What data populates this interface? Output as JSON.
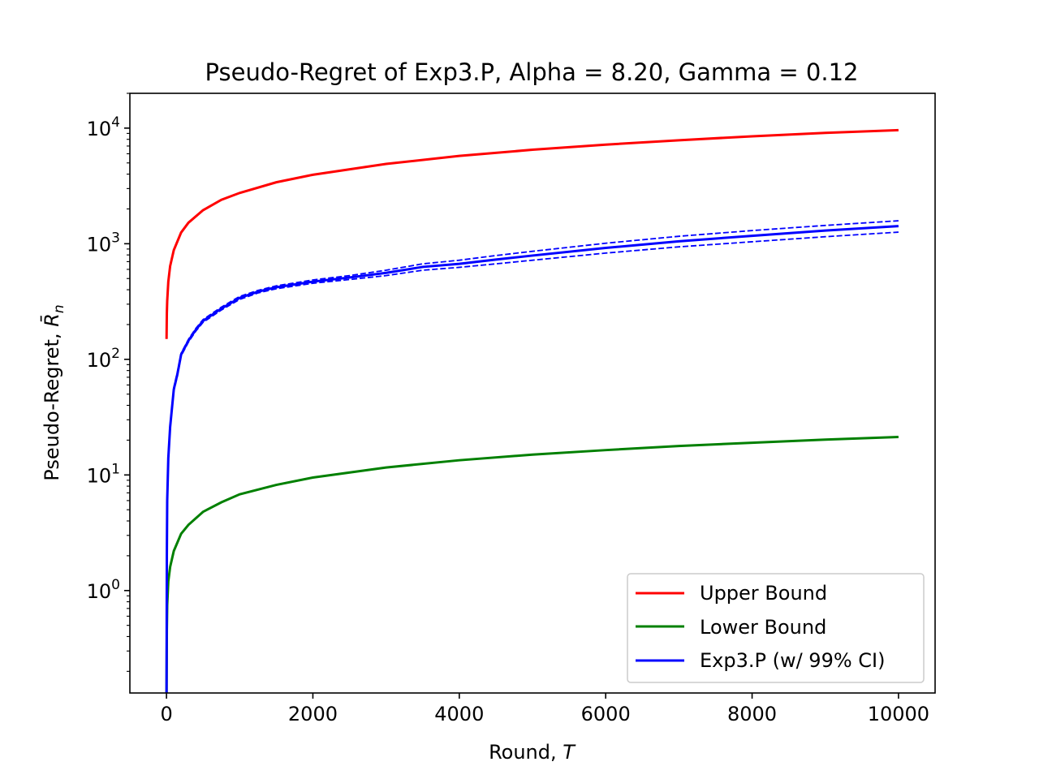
{
  "chart_data": {
    "type": "line",
    "title": "Pseudo-Regret of Exp3.P, Alpha = 8.20, Gamma = 0.12",
    "xlabel": "Round, T",
    "xlabel_parts": [
      "Round, ",
      "T"
    ],
    "ylabel": "Pseudo-Regret, R̄n",
    "ylabel_parts": [
      "Pseudo-Regret, ",
      "R̄",
      "n"
    ],
    "yscale": "log",
    "xlim": [
      -500,
      10500
    ],
    "ylim": [
      0.13,
      20000
    ],
    "xticks": [
      0,
      2000,
      4000,
      6000,
      8000,
      10000
    ],
    "xtick_labels": [
      "0",
      "2000",
      "4000",
      "6000",
      "8000",
      "10000"
    ],
    "yticks": [
      1,
      10,
      100,
      1000,
      10000
    ],
    "ytick_labels": [
      {
        "base": "10",
        "exp": "0"
      },
      {
        "base": "10",
        "exp": "1"
      },
      {
        "base": "10",
        "exp": "2"
      },
      {
        "base": "10",
        "exp": "3"
      },
      {
        "base": "10",
        "exp": "4"
      }
    ],
    "grid": false,
    "legend_position": "lower right",
    "series": [
      {
        "name": "Upper Bound",
        "color": "#ff0000",
        "style": "solid",
        "x": [
          1,
          5,
          10,
          25,
          50,
          100,
          200,
          300,
          500,
          750,
          1000,
          1500,
          2000,
          3000,
          4000,
          5000,
          6000,
          7000,
          8000,
          9000,
          10000
        ],
        "y": [
          150,
          250,
          320,
          470,
          640,
          880,
          1250,
          1520,
          1950,
          2400,
          2750,
          3400,
          3950,
          4900,
          5750,
          6500,
          7200,
          7850,
          8500,
          9100,
          9600
        ]
      },
      {
        "name": "Lower Bound",
        "color": "#008000",
        "style": "solid",
        "x": [
          1,
          5,
          10,
          25,
          50,
          100,
          200,
          300,
          500,
          750,
          1000,
          1500,
          2000,
          3000,
          4000,
          5000,
          6000,
          7000,
          8000,
          9000,
          10000
        ],
        "y": [
          0.13,
          0.45,
          0.75,
          1.2,
          1.6,
          2.2,
          3.1,
          3.7,
          4.8,
          5.8,
          6.8,
          8.2,
          9.5,
          11.6,
          13.4,
          15.0,
          16.4,
          17.8,
          19.0,
          20.2,
          21.3
        ]
      },
      {
        "name": "Exp3.P (w/ 99% CI)",
        "color": "#0000ff",
        "style": "solid",
        "x": [
          1,
          5,
          10,
          25,
          50,
          100,
          150,
          200,
          300,
          400,
          500,
          750,
          1000,
          1250,
          1500,
          2000,
          2500,
          3000,
          3500,
          4000,
          4500,
          5000,
          6000,
          7000,
          8000,
          9000,
          10000
        ],
        "y": [
          0.13,
          2,
          6,
          14,
          26,
          55,
          75,
          110,
          145,
          180,
          215,
          275,
          340,
          385,
          420,
          470,
          510,
          560,
          630,
          670,
          730,
          790,
          920,
          1050,
          1170,
          1300,
          1420
        ]
      },
      {
        "name": "",
        "color": "#0000ff",
        "style": "dashed",
        "x": [
          1,
          5,
          10,
          25,
          50,
          100,
          150,
          200,
          300,
          400,
          500,
          750,
          1000,
          1250,
          1500,
          2000,
          2500,
          3000,
          3500,
          4000,
          4500,
          5000,
          6000,
          7000,
          8000,
          9000,
          10000
        ],
        "y": [
          0.14,
          2.2,
          6.4,
          15,
          27,
          57,
          78,
          113,
          149,
          185,
          221,
          283,
          350,
          395,
          432,
          486,
          530,
          590,
          670,
          720,
          790,
          860,
          1010,
          1160,
          1300,
          1440,
          1580
        ]
      },
      {
        "name": "",
        "color": "#0000ff",
        "style": "dashed",
        "x": [
          1,
          5,
          10,
          25,
          50,
          100,
          150,
          200,
          300,
          400,
          500,
          750,
          1000,
          1250,
          1500,
          2000,
          2500,
          3000,
          3500,
          4000,
          4500,
          5000,
          6000,
          7000,
          8000,
          9000,
          10000
        ],
        "y": [
          0.13,
          1.8,
          5.6,
          13,
          25,
          53,
          72,
          107,
          141,
          175,
          209,
          267,
          330,
          375,
          408,
          455,
          490,
          530,
          590,
          625,
          670,
          720,
          830,
          940,
          1040,
          1150,
          1260
        ]
      }
    ],
    "legend": [
      {
        "label": "Upper Bound",
        "color": "#ff0000"
      },
      {
        "label": "Lower Bound",
        "color": "#008000"
      },
      {
        "label": "Exp3.P (w/ 99% CI)",
        "color": "#0000ff"
      }
    ]
  }
}
